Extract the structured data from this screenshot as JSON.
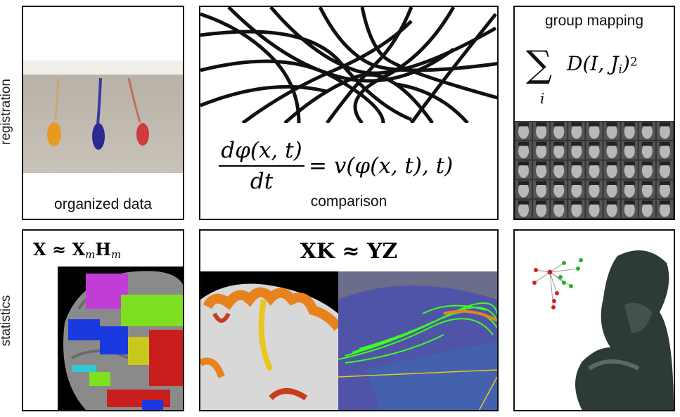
{
  "rows": {
    "top_label": "registration",
    "bottom_label": "statistics"
  },
  "panels": {
    "organized": {
      "caption": "organized data"
    },
    "comparison": {
      "caption": "comparison",
      "eq_num": "dφ(x, t)",
      "eq_den": "dt",
      "eq_rhs": "= v(φ(x, t), t)"
    },
    "group": {
      "caption": "group mapping",
      "sum_symbol": "∑",
      "sum_index": "i",
      "sum_term": "D(I, J",
      "sum_sub": "i",
      "sum_close": ")",
      "sum_exp": "2"
    },
    "factor": {
      "eq_lhs": "X ≈ X",
      "eq_sub1": "m",
      "eq_mid": "H",
      "eq_sub2": "m"
    },
    "regression": {
      "eq": "XK ≈ YZ"
    },
    "thinker": {}
  },
  "colors": {
    "border": "#111111",
    "parcel_magenta": "#c23cd6",
    "parcel_green": "#7ee020",
    "parcel_blue": "#1a3ae0",
    "parcel_red": "#c81e1e",
    "parcel_yellow": "#c8c81e",
    "cortex_orange": "#e8821e",
    "fiber_green": "#3cff20",
    "graph_red": "#d22020",
    "graph_green": "#22b422"
  }
}
